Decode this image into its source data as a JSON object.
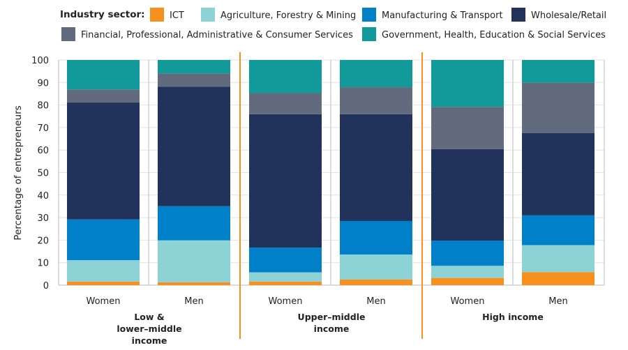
{
  "chart_data": {
    "type": "bar",
    "stacked": true,
    "ylabel": "Percentage of entrepreneurs",
    "ylim": [
      0,
      100
    ],
    "yticks": [
      0,
      10,
      20,
      30,
      40,
      50,
      60,
      70,
      80,
      90,
      100
    ],
    "grid": true,
    "legend_title": "Industry sector:",
    "legend_position": "top",
    "categories": [
      "Women",
      "Men",
      "Women",
      "Men",
      "Women",
      "Men"
    ],
    "groups": [
      {
        "label_lines": [
          "Low &",
          "lower–middle",
          "income"
        ]
      },
      {
        "label_lines": [
          "Upper–middle",
          "income"
        ]
      },
      {
        "label_lines": [
          "High income"
        ]
      }
    ],
    "series": [
      {
        "name": "ICT",
        "color": "#f7901e",
        "values": [
          1.6,
          1.3,
          1.6,
          2.5,
          3.2,
          5.8
        ]
      },
      {
        "name": "Agriculture, Forestry & Mining",
        "color": "#8dd3d6",
        "values": [
          9.5,
          18.6,
          4.1,
          11.1,
          5.4,
          12.0
        ]
      },
      {
        "name": "Manufacturing & Transport",
        "color": "#0080c8",
        "values": [
          18.1,
          15.2,
          11.0,
          14.9,
          11.2,
          13.2
        ]
      },
      {
        "name": "Wholesale/Retail",
        "color": "#21325b",
        "values": [
          51.9,
          53.0,
          59.2,
          47.4,
          40.6,
          36.6
        ]
      },
      {
        "name": "Financial, Professional, Administrative & Consumer Services",
        "color": "#616b7d",
        "values": [
          5.8,
          5.9,
          9.4,
          12.0,
          18.8,
          22.3
        ]
      },
      {
        "name": "Government, Health, Education & Social Services",
        "color": "#12999a",
        "values": [
          13.1,
          6.0,
          14.7,
          12.1,
          20.8,
          10.1
        ]
      }
    ],
    "separator_color": "#f7901e"
  }
}
